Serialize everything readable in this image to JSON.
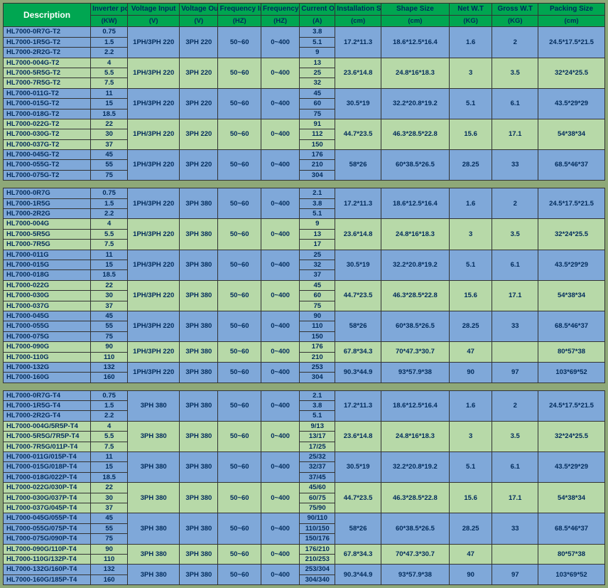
{
  "headers": {
    "labels": [
      "Description",
      "Inverter power",
      "Voltage Input",
      "Voltage Output",
      "Frequency Input",
      "Frequency Output",
      "Current Output",
      "Installation Size",
      "Shape Size",
      "Net W.T",
      "Gross W.T",
      "Packing Size"
    ],
    "units": [
      "",
      "(KW)",
      "(V)",
      "(V)",
      "(HZ)",
      "(HZ)",
      "(A)",
      "(cm)",
      "(cm)",
      "(KG)",
      "(KG)",
      "(cm)"
    ]
  },
  "colors": {
    "header_bg": "#00a651",
    "row_a": "#7fa8d9",
    "row_b": "#b7d9a8",
    "page_bg": "#8ea878",
    "text_dark": "#002b5c"
  },
  "sections": [
    {
      "groups": [
        {
          "cls": "ra",
          "rows": [
            [
              "HL7000-0R7G-T2",
              "0.75"
            ],
            [
              "HL7000-1R5G-T2",
              "1.5"
            ],
            [
              "HL7000-2R2G-T2",
              "2.2"
            ]
          ],
          "vi": "1PH/3PH 220",
          "vo": "3PH 220",
          "fi": "50~60",
          "fo": "0~400",
          "cur": [
            "3.8",
            "5.1",
            "9"
          ],
          "inst": "17.2*11.3",
          "shape": "18.6*12.5*16.4",
          "net": "1.6",
          "gross": "2",
          "pack": "24.5*17.5*21.5"
        },
        {
          "cls": "rb",
          "rows": [
            [
              "HL7000-004G-T2",
              "4"
            ],
            [
              "HL7000-5R5G-T2",
              "5.5"
            ],
            [
              "HL7000-7R5G-T2",
              "7.5"
            ]
          ],
          "vi": "1PH/3PH 220",
          "vo": "3PH 220",
          "fi": "50~60",
          "fo": "0~400",
          "cur": [
            "13",
            "25",
            "32"
          ],
          "inst": "23.6*14.8",
          "shape": "24.8*16*18.3",
          "net": "3",
          "gross": "3.5",
          "pack": "32*24*25.5"
        },
        {
          "cls": "ra",
          "rows": [
            [
              "HL7000-011G-T2",
              "11"
            ],
            [
              "HL7000-015G-T2",
              "15"
            ],
            [
              "HL7000-018G-T2",
              "18.5"
            ]
          ],
          "vi": "1PH/3PH 220",
          "vo": "3PH 220",
          "fi": "50~60",
          "fo": "0~400",
          "cur": [
            "45",
            "60",
            "75"
          ],
          "inst": "30.5*19",
          "shape": "32.2*20.8*19.2",
          "net": "5.1",
          "gross": "6.1",
          "pack": "43.5*29*29"
        },
        {
          "cls": "rb",
          "rows": [
            [
              "HL7000-022G-T2",
              "22"
            ],
            [
              "HL7000-030G-T2",
              "30"
            ],
            [
              "HL7000-037G-T2",
              "37"
            ]
          ],
          "vi": "1PH/3PH 220",
          "vo": "3PH 220",
          "fi": "50~60",
          "fo": "0~400",
          "cur": [
            "91",
            "112",
            "150"
          ],
          "inst": "44.7*23.5",
          "shape": "46.3*28.5*22.8",
          "net": "15.6",
          "gross": "17.1",
          "pack": "54*38*34"
        },
        {
          "cls": "ra",
          "rows": [
            [
              "HL7000-045G-T2",
              "45"
            ],
            [
              "HL7000-055G-T2",
              "55"
            ],
            [
              "HL7000-075G-T2",
              "75"
            ]
          ],
          "vi": "1PH/3PH 220",
          "vo": "3PH 220",
          "fi": "50~60",
          "fo": "0~400",
          "cur": [
            "176",
            "210",
            "304"
          ],
          "inst": "58*26",
          "shape": "60*38.5*26.5",
          "net": "28.25",
          "gross": "33",
          "pack": "68.5*46*37"
        }
      ]
    },
    {
      "groups": [
        {
          "cls": "ra",
          "rows": [
            [
              "HL7000-0R7G",
              "0.75"
            ],
            [
              "HL7000-1R5G",
              "1.5"
            ],
            [
              "HL7000-2R2G",
              "2.2"
            ]
          ],
          "vi": "1PH/3PH 220",
          "vo": "3PH 380",
          "fi": "50~60",
          "fo": "0~400",
          "cur": [
            "2.1",
            "3.8",
            "5.1"
          ],
          "inst": "17.2*11.3",
          "shape": "18.6*12.5*16.4",
          "net": "1.6",
          "gross": "2",
          "pack": "24.5*17.5*21.5"
        },
        {
          "cls": "rb",
          "rows": [
            [
              "HL7000-004G",
              "4"
            ],
            [
              "HL7000-5R5G",
              "5.5"
            ],
            [
              "HL7000-7R5G",
              "7.5"
            ]
          ],
          "vi": "1PH/3PH 220",
          "vo": "3PH 380",
          "fi": "50~60",
          "fo": "0~400",
          "cur": [
            "9",
            "13",
            "17"
          ],
          "inst": "23.6*14.8",
          "shape": "24.8*16*18.3",
          "net": "3",
          "gross": "3.5",
          "pack": "32*24*25.5"
        },
        {
          "cls": "ra",
          "rows": [
            [
              "HL7000-011G",
              "11"
            ],
            [
              "HL7000-015G",
              "15"
            ],
            [
              "HL7000-018G",
              "18.5"
            ]
          ],
          "vi": "1PH/3PH 220",
          "vo": "3PH 380",
          "fi": "50~60",
          "fo": "0~400",
          "cur": [
            "25",
            "32",
            "37"
          ],
          "inst": "30.5*19",
          "shape": "32.2*20.8*19.2",
          "net": "5.1",
          "gross": "6.1",
          "pack": "43.5*29*29"
        },
        {
          "cls": "rb",
          "rows": [
            [
              "HL7000-022G",
              "22"
            ],
            [
              "HL7000-030G",
              "30"
            ],
            [
              "HL7000-037G",
              "37"
            ]
          ],
          "vi": "1PH/3PH 220",
          "vo": "3PH 380",
          "fi": "50~60",
          "fo": "0~400",
          "cur": [
            "45",
            "60",
            "75"
          ],
          "inst": "44.7*23.5",
          "shape": "46.3*28.5*22.8",
          "net": "15.6",
          "gross": "17.1",
          "pack": "54*38*34"
        },
        {
          "cls": "ra",
          "rows": [
            [
              "HL7000-045G",
              "45"
            ],
            [
              "HL7000-055G",
              "55"
            ],
            [
              "HL7000-075G",
              "75"
            ]
          ],
          "vi": "1PH/3PH 220",
          "vo": "3PH 380",
          "fi": "50~60",
          "fo": "0~400",
          "cur": [
            "90",
            "110",
            "150"
          ],
          "inst": "58*26",
          "shape": "60*38.5*26.5",
          "net": "28.25",
          "gross": "33",
          "pack": "68.5*46*37"
        },
        {
          "cls": "rb",
          "rows": [
            [
              "HL7000-090G",
              "90"
            ],
            [
              "HL7000-110G",
              "110"
            ]
          ],
          "vi": "1PH/3PH 220",
          "vo": "3PH 380",
          "fi": "50~60",
          "fo": "0~400",
          "cur": [
            "176",
            "210"
          ],
          "inst": "67.8*34.3",
          "shape": "70*47.3*30.7",
          "net": "47",
          "gross": "",
          "pack": "80*57*38"
        },
        {
          "cls": "ra",
          "rows": [
            [
              "HL7000-132G",
              "132"
            ],
            [
              "HL7000-160G",
              "160"
            ]
          ],
          "vi": "1PH/3PH 220",
          "vo": "3PH 380",
          "fi": "50~60",
          "fo": "0~400",
          "cur": [
            "253",
            "304"
          ],
          "inst": "90.3*44.9",
          "shape": "93*57.9*38",
          "net": "90",
          "gross": "97",
          "pack": "103*69*52"
        }
      ]
    },
    {
      "groups": [
        {
          "cls": "ra",
          "rows": [
            [
              "HL7000-0R7G-T4",
              "0.75"
            ],
            [
              "HL7000-1R5G-T4",
              "1.5"
            ],
            [
              "HL7000-2R2G-T4",
              "2.2"
            ]
          ],
          "vi": "3PH 380",
          "vo": "3PH 380",
          "fi": "50~60",
          "fo": "0~400",
          "cur": [
            "2.1",
            "3.8",
            "5.1"
          ],
          "inst": "17.2*11.3",
          "shape": "18.6*12.5*16.4",
          "net": "1.6",
          "gross": "2",
          "pack": "24.5*17.5*21.5"
        },
        {
          "cls": "rb",
          "rows": [
            [
              "HL7000-004G/5R5P-T4",
              "4"
            ],
            [
              "HL7000-5R5G/7R5P-T4",
              "5.5"
            ],
            [
              "HL7000-7R5G/011P-T4",
              "7.5"
            ]
          ],
          "vi": "3PH 380",
          "vo": "3PH 380",
          "fi": "50~60",
          "fo": "0~400",
          "cur": [
            "9/13",
            "13/17",
            "17/25"
          ],
          "inst": "23.6*14.8",
          "shape": "24.8*16*18.3",
          "net": "3",
          "gross": "3.5",
          "pack": "32*24*25.5"
        },
        {
          "cls": "ra",
          "rows": [
            [
              "HL7000-011G/015P-T4",
              "11"
            ],
            [
              "HL7000-015G/018P-T4",
              "15"
            ],
            [
              "HL7000-018G/022P-T4",
              "18.5"
            ]
          ],
          "vi": "3PH 380",
          "vo": "3PH 380",
          "fi": "50~60",
          "fo": "0~400",
          "cur": [
            "25/32",
            "32/37",
            "37/45"
          ],
          "inst": "30.5*19",
          "shape": "32.2*20.8*19.2",
          "net": "5.1",
          "gross": "6.1",
          "pack": "43.5*29*29"
        },
        {
          "cls": "rb",
          "rows": [
            [
              "HL7000-022G/030P-T4",
              "22"
            ],
            [
              "HL7000-030G/037P-T4",
              "30"
            ],
            [
              "HL7000-037G/045P-T4",
              "37"
            ]
          ],
          "vi": "3PH 380",
          "vo": "3PH 380",
          "fi": "50~60",
          "fo": "0~400",
          "cur": [
            "45/60",
            "60/75",
            "75/90"
          ],
          "inst": "44.7*23.5",
          "shape": "46.3*28.5*22.8",
          "net": "15.6",
          "gross": "17.1",
          "pack": "54*38*34"
        },
        {
          "cls": "ra",
          "rows": [
            [
              "HL7000-045G/055P-T4",
              "45"
            ],
            [
              "HL7000-055G/075P-T4",
              "55"
            ],
            [
              "HL7000-075G/090P-T4",
              "75"
            ]
          ],
          "vi": "3PH 380",
          "vo": "3PH 380",
          "fi": "50~60",
          "fo": "0~400",
          "cur": [
            "90/110",
            "110/150",
            "150/176"
          ],
          "inst": "58*26",
          "shape": "60*38.5*26.5",
          "net": "28.25",
          "gross": "33",
          "pack": "68.5*46*37"
        },
        {
          "cls": "rb",
          "rows": [
            [
              "HL7000-090G/110P-T4",
              "90"
            ],
            [
              "HL7000-110G/132P-T4",
              "110"
            ]
          ],
          "vi": "3PH 380",
          "vo": "3PH 380",
          "fi": "50~60",
          "fo": "0~400",
          "cur": [
            "176/210",
            "210/253"
          ],
          "inst": "67.8*34.3",
          "shape": "70*47.3*30.7",
          "net": "47",
          "gross": "",
          "pack": "80*57*38"
        },
        {
          "cls": "ra",
          "rows": [
            [
              "HL7000-132G/160P-T4",
              "132"
            ],
            [
              "HL7000-160G/185P-T4",
              "160"
            ]
          ],
          "vi": "3PH 380",
          "vo": "3PH 380",
          "fi": "50~60",
          "fo": "0~400",
          "cur": [
            "253/304",
            "304/340"
          ],
          "inst": "90.3*44.9",
          "shape": "93*57.9*38",
          "net": "90",
          "gross": "97",
          "pack": "103*69*52"
        }
      ]
    }
  ]
}
